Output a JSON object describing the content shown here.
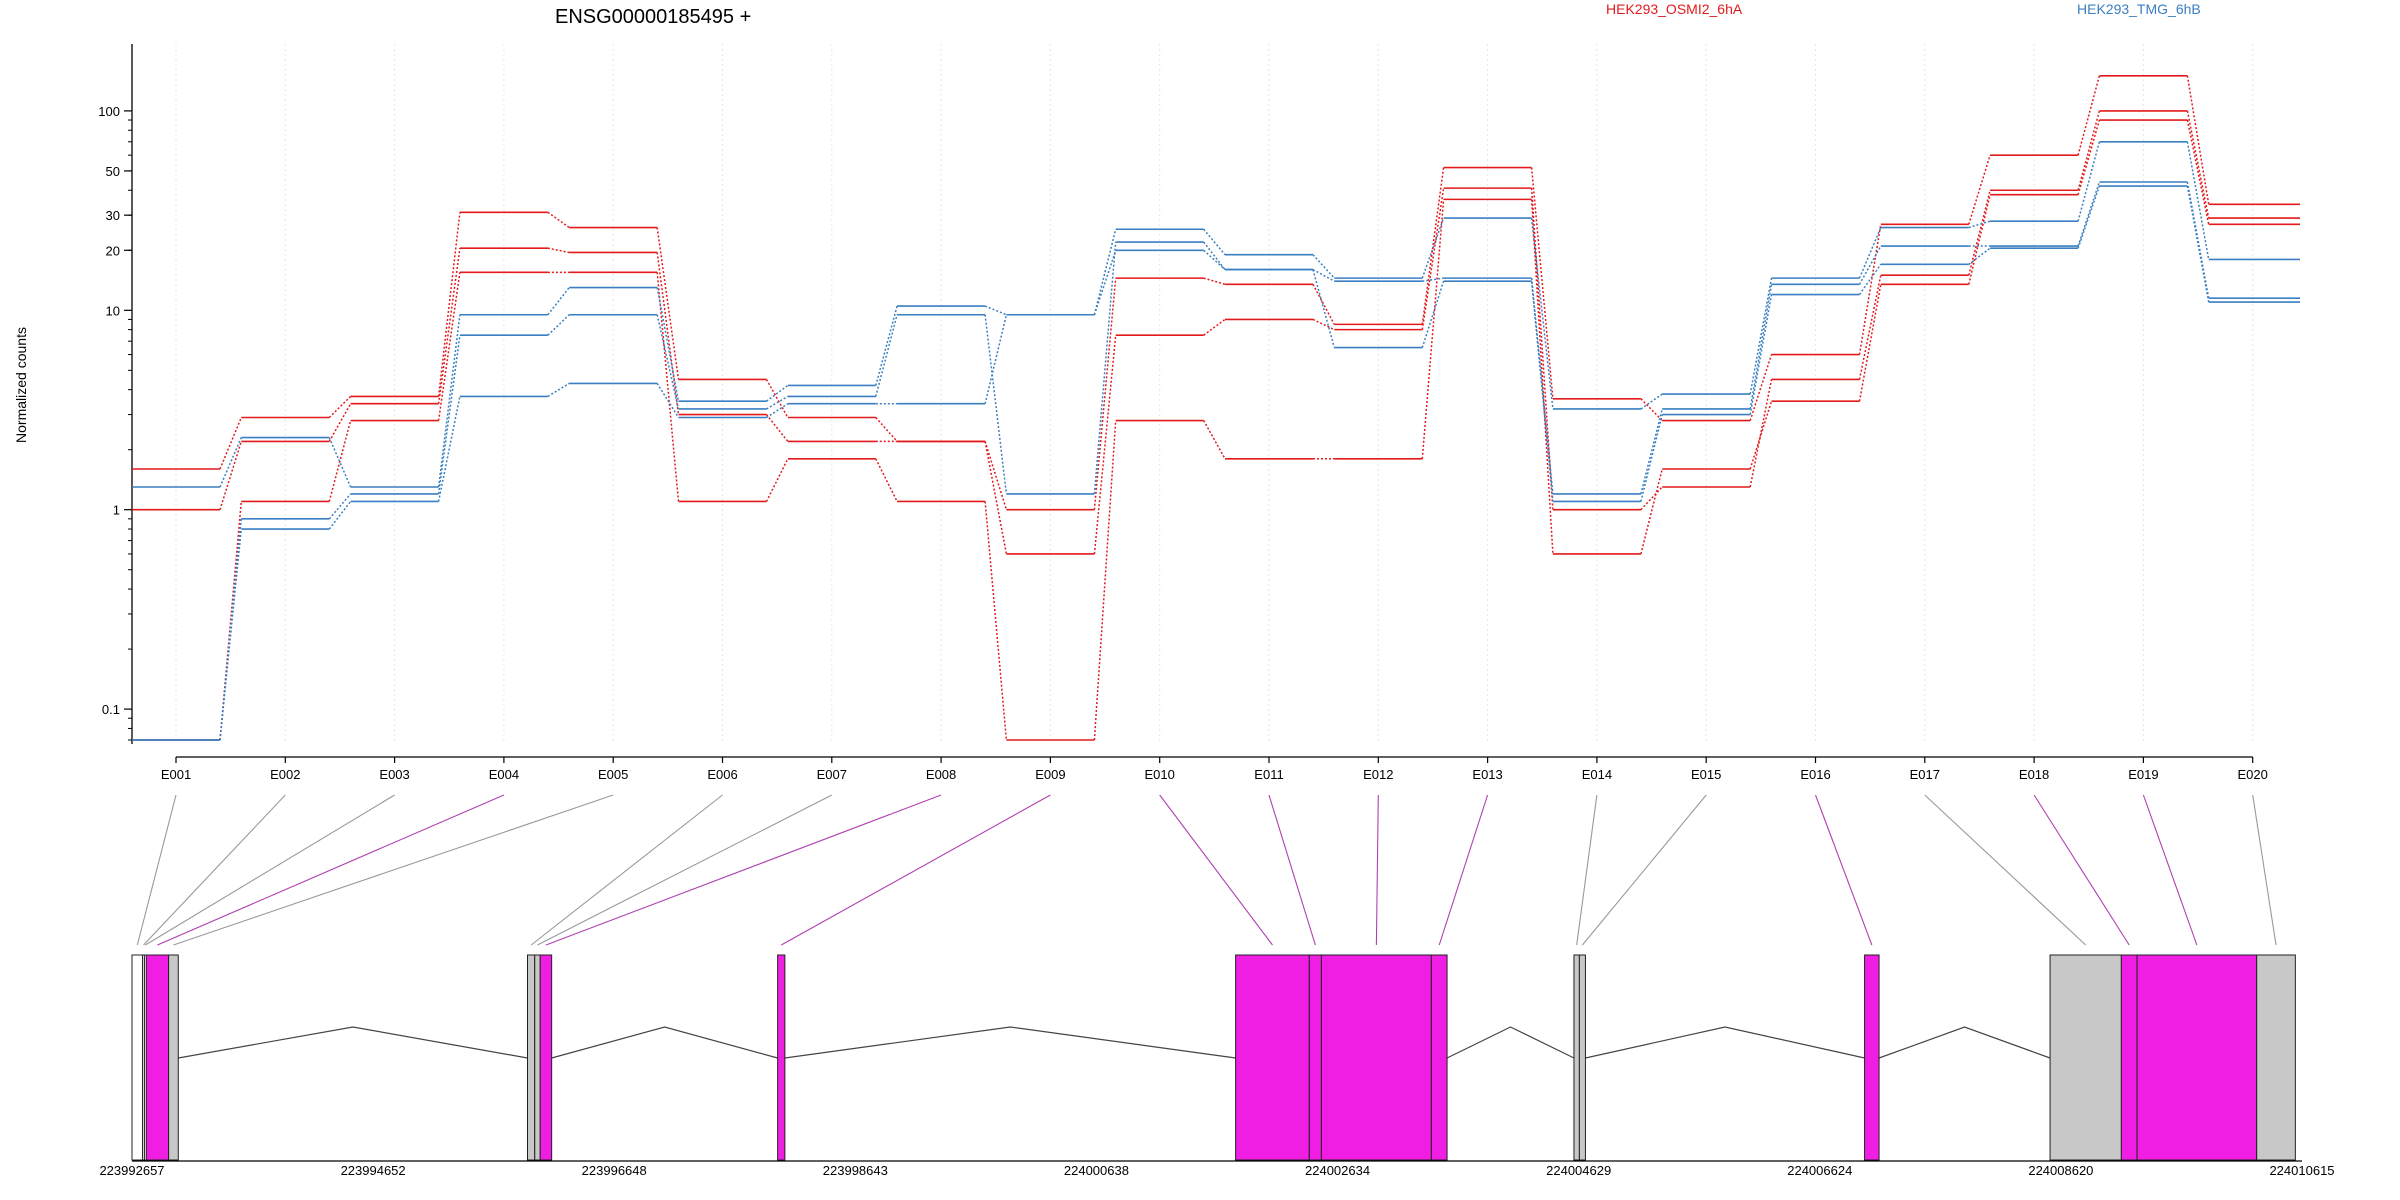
{
  "chart_data": {
    "type": "line",
    "title": "ENSG00000185495 +",
    "ylabel": "Normalized counts",
    "xlabel": "",
    "y_scale": "log",
    "ylim": [
      0.07,
      180
    ],
    "y_ticks": [
      {
        "value": 0.1,
        "label": "0.1"
      },
      {
        "value": 1,
        "label": "1"
      },
      {
        "value": 10,
        "label": "10"
      },
      {
        "value": 20,
        "label": "20"
      },
      {
        "value": 30,
        "label": "30"
      },
      {
        "value": 50,
        "label": "50"
      },
      {
        "value": 100,
        "label": "100"
      }
    ],
    "categories": [
      "E001",
      "E002",
      "E003",
      "E004",
      "E005",
      "E006",
      "E007",
      "E008",
      "E009",
      "E010",
      "E011",
      "E012",
      "E013",
      "E014",
      "E015",
      "E016",
      "E017",
      "E018",
      "E019",
      "E020"
    ],
    "legend": [
      {
        "label": "HEK293_OSMI2_6hA",
        "color": "#e31a1c"
      },
      {
        "label": "HEK293_TMG_6hB",
        "color": "#3a7fc1"
      }
    ],
    "series": [
      {
        "group": "HEK293_OSMI2_6hA",
        "color": "#e31a1c",
        "values": [
          1.6,
          2.9,
          3.7,
          31,
          26,
          4.5,
          2.9,
          2.2,
          1.0,
          14.5,
          13.5,
          8.5,
          52,
          3.6,
          2.8,
          6.0,
          27,
          60,
          150,
          34
        ]
      },
      {
        "group": "HEK293_OSMI2_6hA",
        "color": "#e31a1c",
        "values": [
          1.0,
          2.2,
          3.4,
          20.5,
          19.5,
          3.0,
          2.2,
          2.2,
          0.6,
          7.5,
          9.0,
          8.0,
          41,
          1.0,
          1.3,
          4.5,
          15,
          40,
          100,
          29
        ]
      },
      {
        "group": "HEK293_OSMI2_6hA",
        "color": "#e31a1c",
        "values": [
          0.07,
          1.1,
          2.8,
          15.5,
          15.5,
          1.1,
          1.8,
          1.1,
          0.07,
          2.8,
          1.8,
          1.8,
          36,
          0.6,
          1.6,
          3.5,
          13.5,
          38,
          90,
          27
        ]
      },
      {
        "group": "HEK293_TMG_6hB",
        "color": "#3a7fc1",
        "values": [
          1.3,
          2.3,
          1.3,
          9.5,
          13,
          3.5,
          4.2,
          10.5,
          9.5,
          25.5,
          19,
          14.5,
          29,
          3.2,
          3.8,
          14.5,
          26,
          28,
          70,
          18
        ]
      },
      {
        "group": "HEK293_TMG_6hB",
        "color": "#3a7fc1",
        "values": [
          0.07,
          0.9,
          1.2,
          7.5,
          9.5,
          3.2,
          3.7,
          9.5,
          1.2,
          22,
          16,
          14,
          14.5,
          1.2,
          3.2,
          13.5,
          21,
          21,
          44,
          11.5
        ]
      },
      {
        "group": "HEK293_TMG_6hB",
        "color": "#3a7fc1",
        "values": [
          0.07,
          0.8,
          1.1,
          3.7,
          4.3,
          2.9,
          3.4,
          3.4,
          9.5,
          20,
          16,
          6.5,
          14,
          1.1,
          3.0,
          12,
          17,
          20.5,
          42,
          11
        ]
      }
    ],
    "gene_model": {
      "genomic_ticks": [
        "223992657",
        "223994652",
        "223996648",
        "223998643",
        "224000638",
        "224002634",
        "224004629",
        "224006624",
        "224008620",
        "224010615"
      ],
      "exons": [
        {
          "id": "E001",
          "start": 223992657,
          "end": 223992745,
          "color": "#ffffff"
        },
        {
          "id": "E002",
          "start": 223992745,
          "end": 223992760,
          "color": "#ffffff"
        },
        {
          "id": "E003",
          "start": 223992760,
          "end": 223992775,
          "color": "#ffffff"
        },
        {
          "id": "E004",
          "start": 223992775,
          "end": 223992960,
          "color": "#f01ee3"
        },
        {
          "id": "E005",
          "start": 223992960,
          "end": 223993040,
          "color": "#c8c8c8"
        },
        {
          "id": "E006",
          "start": 223995930,
          "end": 223995990,
          "color": "#c8c8c8"
        },
        {
          "id": "E007",
          "start": 223995990,
          "end": 223996035,
          "color": "#c8c8c8"
        },
        {
          "id": "E008",
          "start": 223996035,
          "end": 223996130,
          "color": "#f01ee3"
        },
        {
          "id": "E009",
          "start": 223998000,
          "end": 223998060,
          "color": "#f01ee3"
        },
        {
          "id": "E010",
          "start": 224001790,
          "end": 224002400,
          "color": "#f01ee3"
        },
        {
          "id": "E011",
          "start": 224002400,
          "end": 224002500,
          "color": "#f01ee3"
        },
        {
          "id": "E012",
          "start": 224002500,
          "end": 224003410,
          "color": "#f01ee3"
        },
        {
          "id": "E013",
          "start": 224003410,
          "end": 224003540,
          "color": "#f01ee3"
        },
        {
          "id": "E014",
          "start": 224004590,
          "end": 224004635,
          "color": "#c8c8c8"
        },
        {
          "id": "E015",
          "start": 224004635,
          "end": 224004685,
          "color": "#c8c8c8"
        },
        {
          "id": "E016",
          "start": 224006995,
          "end": 224007115,
          "color": "#f01ee3"
        },
        {
          "id": "E017",
          "start": 224008530,
          "end": 224009120,
          "color": "#c8c8c8"
        },
        {
          "id": "E018",
          "start": 224009120,
          "end": 224009250,
          "color": "#f01ee3"
        },
        {
          "id": "E019",
          "start": 224009250,
          "end": 224010240,
          "color": "#f01ee3"
        },
        {
          "id": "E020",
          "start": 224010240,
          "end": 224010560,
          "color": "#c8c8c8"
        }
      ],
      "introns": [
        [
          223993040,
          223995930
        ],
        [
          223996130,
          223998000
        ],
        [
          223998060,
          224001790
        ],
        [
          224003540,
          224004590
        ],
        [
          224004685,
          224006995
        ],
        [
          224007115,
          224008530
        ]
      ]
    }
  }
}
